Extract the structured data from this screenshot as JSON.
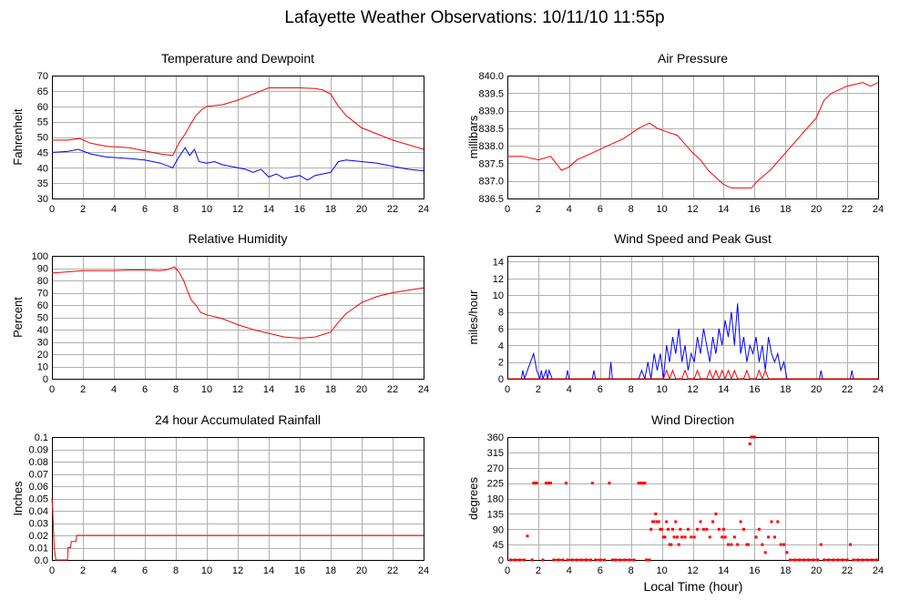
{
  "page_title": "Lafayette Weather Observations: 10/11/10 11:55p",
  "colors": {
    "red": "#ff0000",
    "blue": "#0000ff",
    "grid": "#b0b0b0"
  },
  "chart_data": [
    {
      "id": "temp",
      "type": "line",
      "title": "Temperature and Dewpoint",
      "ylabel": "Fahrenheit",
      "xlabel": "",
      "xlim": [
        0,
        24
      ],
      "xticks": [
        0,
        2,
        4,
        6,
        8,
        10,
        12,
        14,
        16,
        18,
        20,
        22,
        24
      ],
      "ylim": [
        30,
        70
      ],
      "yticks": [
        "30",
        "35",
        "40",
        "45",
        "50",
        "55",
        "60",
        "65",
        "70"
      ],
      "grid": true,
      "series": [
        {
          "color": "#ff0000",
          "x": [
            0,
            1,
            1.8,
            2.5,
            3.5,
            5,
            6,
            7,
            7.8,
            8.2,
            8.6,
            9,
            9.3,
            9.7,
            10,
            11,
            12,
            13,
            14,
            15,
            16,
            17,
            17.5,
            18,
            18.5,
            19,
            20,
            21,
            22,
            23,
            24
          ],
          "y": [
            49,
            49,
            49.5,
            48,
            47,
            46.5,
            45.5,
            44.5,
            44,
            48,
            51,
            54.5,
            57,
            59,
            60,
            60.5,
            62,
            64,
            66,
            66,
            66,
            65.8,
            65.3,
            64,
            60,
            57,
            53,
            51,
            49,
            47.5,
            46
          ]
        },
        {
          "color": "#0000ff",
          "x": [
            0,
            1,
            1.7,
            2.5,
            3.5,
            5,
            6,
            7,
            7.8,
            8.2,
            8.6,
            8.9,
            9.2,
            9.5,
            10,
            10.5,
            11,
            12,
            12.5,
            13,
            13.5,
            14,
            14.5,
            15,
            15.5,
            16,
            16.5,
            17,
            17.5,
            18,
            18.5,
            19,
            20,
            21,
            22,
            23,
            24
          ],
          "y": [
            45,
            45.3,
            46,
            44.5,
            43.5,
            43,
            42.5,
            41.5,
            40,
            43.5,
            46.5,
            44,
            46,
            42,
            41.5,
            42,
            41,
            40,
            39.5,
            38.5,
            39.5,
            37,
            38,
            36.5,
            37,
            37.5,
            36,
            37.5,
            38,
            38.5,
            42,
            42.5,
            42,
            41.5,
            40.5,
            39.5,
            39
          ]
        }
      ]
    },
    {
      "id": "pressure",
      "type": "line",
      "title": "Air Pressure",
      "ylabel": "millibars",
      "xlabel": "",
      "xlim": [
        0,
        24
      ],
      "xticks": [
        0,
        2,
        4,
        6,
        8,
        10,
        12,
        14,
        16,
        18,
        20,
        22,
        24
      ],
      "ylim": [
        836.5,
        840.0
      ],
      "yticks": [
        "836.5",
        "837.0",
        "837.5",
        "838.0",
        "838.5",
        "839.0",
        "839.5",
        "840.0"
      ],
      "grid": true,
      "series": [
        {
          "color": "#ff0000",
          "x": [
            0,
            1,
            2,
            2.8,
            3.5,
            4,
            4.5,
            5.5,
            6.5,
            7.5,
            8.5,
            9.2,
            9.7,
            10.3,
            11,
            12,
            12.5,
            13,
            13.5,
            14,
            14.5,
            15,
            15.8,
            16.2,
            17,
            18,
            19,
            20,
            20.5,
            21,
            22,
            23,
            23.5,
            24
          ],
          "y": [
            837.7,
            837.7,
            837.6,
            837.7,
            837.3,
            837.4,
            837.6,
            837.8,
            838.0,
            838.2,
            838.5,
            838.65,
            838.5,
            838.4,
            838.3,
            837.8,
            837.6,
            837.3,
            837.1,
            836.9,
            836.8,
            836.8,
            836.8,
            837.0,
            837.3,
            837.8,
            838.3,
            838.8,
            839.3,
            839.5,
            839.7,
            839.8,
            839.7,
            839.8
          ]
        }
      ]
    },
    {
      "id": "humidity",
      "type": "line",
      "title": "Relative Humidity",
      "ylabel": "Percent",
      "xlabel": "",
      "xlim": [
        0,
        24
      ],
      "xticks": [
        0,
        2,
        4,
        6,
        8,
        10,
        12,
        14,
        16,
        18,
        20,
        22,
        24
      ],
      "ylim": [
        0,
        100
      ],
      "yticks": [
        "0",
        "10",
        "20",
        "30",
        "40",
        "50",
        "60",
        "70",
        "80",
        "90",
        "100"
      ],
      "grid": true,
      "series": [
        {
          "color": "#ff0000",
          "x": [
            0,
            1,
            2,
            3,
            4,
            5,
            6,
            7,
            7.5,
            7.9,
            8.2,
            8.5,
            8.8,
            9,
            9.3,
            9.6,
            10,
            11,
            12,
            13,
            14,
            15,
            16,
            17,
            17.5,
            18,
            18.5,
            19,
            20,
            21,
            22,
            23,
            24
          ],
          "y": [
            86,
            87,
            88,
            88,
            88,
            88.5,
            88.5,
            88,
            89,
            91,
            87,
            80,
            70,
            64,
            60,
            54,
            52,
            49,
            44,
            40,
            37,
            34,
            33,
            34,
            36,
            38,
            46,
            53,
            62,
            67,
            70,
            72,
            74
          ]
        }
      ]
    },
    {
      "id": "wind",
      "type": "line",
      "title": "Wind Speed and Peak Gust",
      "ylabel": "miles/hour",
      "xlabel": "",
      "xlim": [
        0,
        24
      ],
      "xticks": [
        0,
        2,
        4,
        6,
        8,
        10,
        12,
        14,
        16,
        18,
        20,
        22,
        24
      ],
      "ylim": [
        0,
        15
      ],
      "yticks": [
        "0",
        "2",
        "4",
        "6",
        "8",
        "10",
        "12",
        "14"
      ],
      "grid": true,
      "series": [
        {
          "color": "#0000ff",
          "x": [
            0,
            0.9,
            1,
            1.1,
            1.5,
            1.7,
            1.9,
            2.1,
            2.2,
            2.3,
            2.5,
            2.6,
            2.7,
            2.9,
            3.0,
            3.8,
            3.9,
            4.0,
            5.5,
            5.6,
            5.7,
            6.6,
            6.7,
            6.8,
            8.5,
            8.7,
            8.9,
            9.1,
            9.3,
            9.5,
            9.7,
            9.9,
            10.1,
            10.3,
            10.5,
            10.7,
            10.9,
            11.1,
            11.3,
            11.5,
            11.7,
            11.9,
            12.1,
            12.3,
            12.5,
            12.7,
            12.9,
            13.1,
            13.3,
            13.5,
            13.7,
            13.9,
            14.1,
            14.3,
            14.5,
            14.7,
            14.9,
            15.1,
            15.3,
            15.5,
            15.7,
            15.9,
            16.1,
            16.3,
            16.5,
            16.7,
            16.9,
            17.1,
            17.3,
            17.5,
            17.7,
            17.9,
            18.1,
            20.2,
            20.3,
            20.4,
            22.2,
            22.3,
            22.4,
            24
          ],
          "y": [
            0,
            0,
            1,
            0,
            2,
            3,
            1,
            0,
            1,
            0,
            1,
            0,
            1,
            0,
            0,
            0,
            1,
            0,
            0,
            1,
            0,
            0,
            2,
            0,
            0,
            1,
            0,
            2,
            0,
            3,
            1,
            3,
            0,
            4,
            2,
            5,
            3,
            6,
            2,
            4,
            1,
            3,
            2,
            5,
            3,
            6,
            4,
            2,
            5,
            3,
            6,
            4,
            7,
            5,
            8,
            4,
            9,
            3,
            5,
            2,
            4,
            3,
            5,
            2,
            4,
            1,
            5,
            3,
            2,
            3,
            1,
            2,
            0,
            0,
            1,
            0,
            0,
            1,
            0,
            0
          ]
        },
        {
          "color": "#ff0000",
          "x": [
            0,
            10.1,
            10.3,
            10.5,
            10.7,
            10.9,
            11.3,
            11.5,
            11.7,
            12.1,
            12.3,
            12.5,
            12.9,
            13.1,
            13.3,
            13.5,
            13.7,
            13.9,
            14.1,
            14.3,
            14.5,
            14.7,
            14.9,
            15.3,
            15.5,
            15.7,
            16.1,
            16.3,
            16.5,
            16.7,
            16.9,
            17.1,
            24
          ],
          "y": [
            0,
            0,
            1,
            0,
            1,
            0,
            0,
            1,
            0,
            0,
            1,
            0,
            0,
            1,
            0,
            1,
            0,
            1,
            0,
            1,
            0,
            1,
            0,
            0,
            1,
            0,
            0,
            1,
            0,
            1,
            0,
            0,
            0
          ]
        }
      ]
    },
    {
      "id": "rain",
      "type": "line",
      "title": "24 hour Accumulated Rainfall",
      "ylabel": "Inches",
      "xlabel": "",
      "xlim": [
        0,
        24
      ],
      "xticks": [
        0,
        2,
        4,
        6,
        8,
        10,
        12,
        14,
        16,
        18,
        20,
        22,
        24
      ],
      "ylim": [
        0,
        0.1
      ],
      "yticks": [
        "0.0",
        "0.01",
        "0.02",
        "0.03",
        "0.04",
        "0.05",
        "0.06",
        "0.07",
        "0.08",
        "0.09",
        "0.1"
      ],
      "grid": true,
      "series": [
        {
          "color": "#ff0000",
          "x": [
            0,
            0.05,
            0.15,
            0.25,
            1.0,
            1.05,
            1.2,
            1.25,
            1.55,
            1.6,
            24
          ],
          "y": [
            0.05,
            0.04,
            0.01,
            0,
            0,
            0.01,
            0.01,
            0.015,
            0.015,
            0.02,
            0.02
          ]
        }
      ]
    },
    {
      "id": "direction",
      "type": "scatter",
      "title": "Wind Direction",
      "ylabel": "degrees",
      "xlabel": "Local Time (hour)",
      "xlim": [
        0,
        24
      ],
      "xticks": [
        0,
        2,
        4,
        6,
        8,
        10,
        12,
        14,
        16,
        18,
        20,
        22,
        24
      ],
      "ylim": [
        0,
        360
      ],
      "yticks": [
        "0",
        "45",
        "90",
        "135",
        "180",
        "225",
        "270",
        "315",
        "360"
      ],
      "grid": true,
      "series": [
        {
          "color": "#ff0000",
          "x": [
            0.2,
            0.5,
            0.8,
            1.1,
            1.3,
            1.6,
            1.7,
            1.8,
            1.9,
            2.3,
            2.5,
            2.6,
            2.7,
            2.8,
            3.0,
            3.3,
            3.6,
            3.8,
            3.9,
            4.2,
            4.5,
            4.8,
            5.1,
            5.4,
            5.5,
            5.7,
            6.0,
            6.3,
            6.6,
            6.8,
            7.0,
            7.3,
            7.6,
            7.9,
            8.2,
            8.5,
            8.6,
            8.7,
            8.8,
            8.9,
            9.0,
            9.2,
            9.3,
            9.4,
            9.5,
            9.6,
            9.7,
            9.8,
            9.9,
            10.0,
            10.1,
            10.2,
            10.3,
            10.4,
            10.5,
            10.6,
            10.7,
            10.8,
            10.9,
            11.0,
            11.1,
            11.2,
            11.3,
            11.5,
            11.7,
            11.9,
            12.1,
            12.3,
            12.5,
            12.7,
            12.9,
            13.1,
            13.3,
            13.5,
            13.7,
            13.9,
            14.0,
            14.1,
            14.3,
            14.5,
            14.7,
            14.9,
            15.1,
            15.3,
            15.5,
            15.6,
            15.7,
            15.8,
            15.9,
            16.0,
            16.1,
            16.3,
            16.5,
            16.7,
            16.9,
            17.1,
            17.3,
            17.5,
            17.7,
            17.9,
            18.1,
            18.3,
            18.6,
            18.9,
            19.2,
            19.5,
            19.8,
            20.1,
            20.3,
            20.5,
            20.8,
            21.1,
            21.4,
            21.7,
            22.0,
            22.2,
            22.4,
            22.7,
            23.0,
            23.3,
            23.6,
            23.9
          ],
          "y": [
            0,
            0,
            0,
            0,
            70,
            0,
            225,
            225,
            225,
            0,
            225,
            225,
            225,
            225,
            0,
            0,
            0,
            225,
            0,
            0,
            0,
            0,
            0,
            0,
            225,
            0,
            0,
            0,
            225,
            0,
            0,
            0,
            0,
            0,
            0,
            225,
            225,
            225,
            225,
            225,
            0,
            0,
            90,
            112,
            112,
            135,
            112,
            112,
            90,
            90,
            67,
            67,
            112,
            90,
            45,
            45,
            90,
            67,
            112,
            67,
            45,
            90,
            67,
            67,
            90,
            67,
            67,
            90,
            112,
            90,
            90,
            67,
            112,
            135,
            90,
            67,
            90,
            67,
            45,
            45,
            67,
            45,
            112,
            90,
            45,
            45,
            340,
            360,
            360,
            360,
            67,
            90,
            45,
            22,
            67,
            112,
            67,
            112,
            45,
            45,
            22,
            0,
            0,
            0,
            0,
            0,
            0,
            0,
            45,
            0,
            0,
            0,
            0,
            0,
            0,
            45,
            0,
            0,
            0,
            0,
            0,
            0
          ]
        }
      ]
    }
  ]
}
